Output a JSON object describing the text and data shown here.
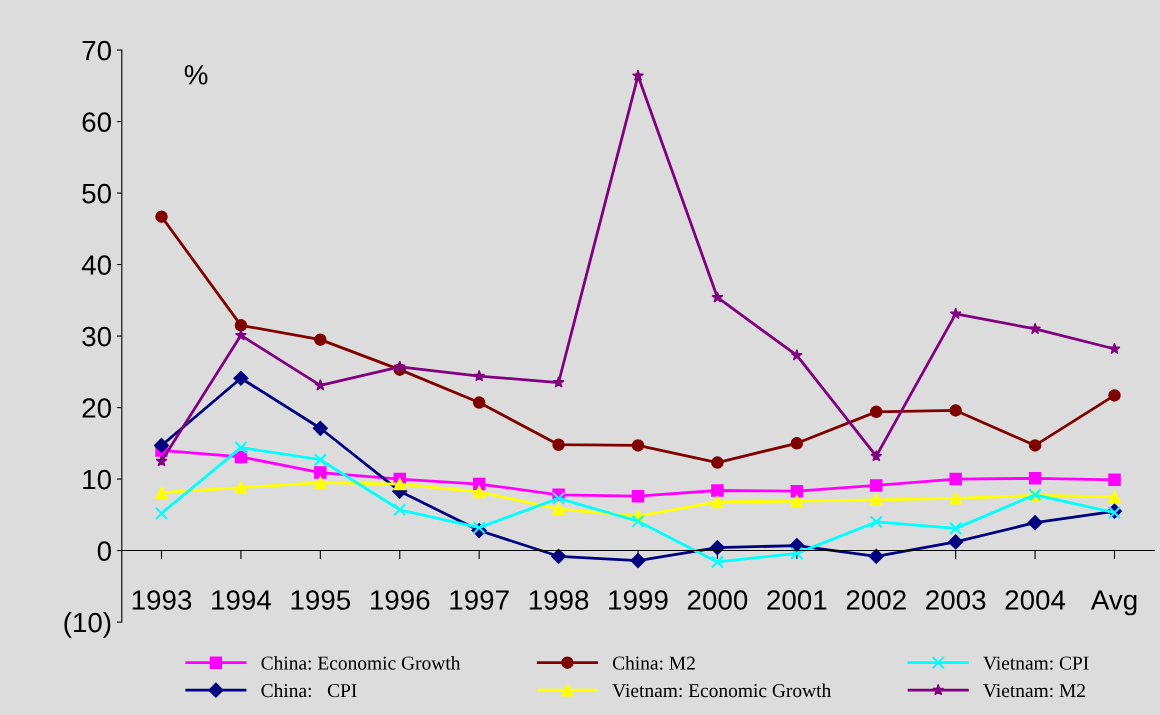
{
  "chart_data": {
    "type": "line",
    "categories": [
      "1993",
      "1994",
      "1995",
      "1996",
      "1997",
      "1998",
      "1999",
      "2000",
      "2001",
      "2002",
      "2003",
      "2004",
      "Avg"
    ],
    "series": [
      {
        "name": "China: Economic Growth",
        "color": "#ff00ff",
        "marker": "square",
        "values": [
          14.0,
          13.1,
          10.9,
          10.0,
          9.3,
          7.8,
          7.6,
          8.4,
          8.3,
          9.1,
          10.0,
          10.1,
          9.9
        ]
      },
      {
        "name": "China:   CPI",
        "color": "#000080",
        "marker": "diamond",
        "values": [
          14.7,
          24.1,
          17.1,
          8.3,
          2.8,
          -0.8,
          -1.4,
          0.4,
          0.7,
          -0.8,
          1.2,
          3.9,
          5.5
        ]
      },
      {
        "name": "China: M2",
        "color": "#800000",
        "marker": "circle",
        "values": [
          46.7,
          31.5,
          29.5,
          25.3,
          20.7,
          14.8,
          14.7,
          12.3,
          15.0,
          19.4,
          19.6,
          14.7,
          21.7
        ]
      },
      {
        "name": "Vietnam: Economic Growth",
        "color": "#ffff00",
        "marker": "triangle",
        "values": [
          8.1,
          8.8,
          9.5,
          9.3,
          8.2,
          5.8,
          4.8,
          6.8,
          6.9,
          7.1,
          7.3,
          7.7,
          7.5
        ]
      },
      {
        "name": "Vietnam: CPI",
        "color": "#00ffff",
        "marker": "cross",
        "values": [
          5.2,
          14.4,
          12.7,
          5.7,
          3.2,
          7.3,
          4.1,
          -1.6,
          -0.4,
          4.0,
          3.1,
          7.8,
          5.3
        ]
      },
      {
        "name": "Vietnam: M2",
        "color": "#800080",
        "marker": "star",
        "values": [
          12.5,
          30.1,
          23.1,
          25.7,
          24.4,
          23.5,
          66.4,
          35.4,
          27.3,
          13.2,
          33.1,
          31.0,
          28.2
        ]
      }
    ],
    "ylim": [
      -10,
      70
    ],
    "yticks": [
      {
        "value": -10,
        "label": "(10)"
      },
      0,
      10,
      20,
      30,
      40,
      50,
      60,
      70
    ],
    "annotations": [
      "%"
    ],
    "grid": false,
    "legend": "bottom",
    "line_style": "solid"
  }
}
